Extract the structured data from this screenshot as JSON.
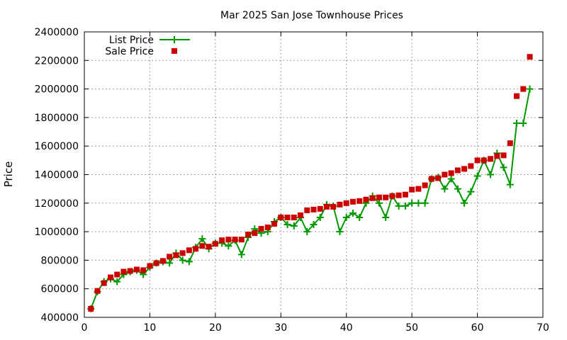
{
  "chart_data": {
    "type": "line",
    "title": "Mar 2025 San Jose Townhouse Prices",
    "xlabel": "",
    "ylabel": "Price",
    "xlim": [
      0,
      70
    ],
    "ylim": [
      400000,
      2400000
    ],
    "xticks": [
      0,
      10,
      20,
      30,
      40,
      50,
      60,
      70
    ],
    "yticks": [
      400000,
      600000,
      800000,
      1000000,
      1200000,
      1400000,
      1600000,
      1800000,
      2000000,
      2200000,
      2400000
    ],
    "grid": true,
    "legend_position": "top-left",
    "series": [
      {
        "name": "List Price",
        "kind": "line-points",
        "color": "#009900",
        "x": [
          1,
          2,
          3,
          4,
          5,
          6,
          7,
          8,
          9,
          10,
          11,
          12,
          13,
          14,
          15,
          16,
          17,
          18,
          19,
          20,
          21,
          22,
          23,
          24,
          25,
          26,
          27,
          28,
          29,
          30,
          31,
          32,
          33,
          34,
          35,
          36,
          37,
          38,
          39,
          40,
          41,
          42,
          43,
          44,
          45,
          46,
          47,
          48,
          49,
          50,
          51,
          52,
          53,
          54,
          55,
          56,
          57,
          58,
          59,
          60,
          61,
          62,
          63,
          64,
          65,
          66,
          67,
          68
        ],
        "values": [
          460000,
          580000,
          650000,
          670000,
          650000,
          700000,
          720000,
          730000,
          700000,
          750000,
          780000,
          790000,
          780000,
          850000,
          800000,
          790000,
          890000,
          950000,
          880000,
          920000,
          920000,
          900000,
          940000,
          840000,
          960000,
          1020000,
          990000,
          1000000,
          1070000,
          1100000,
          1050000,
          1040000,
          1100000,
          1000000,
          1050000,
          1100000,
          1190000,
          1180000,
          1000000,
          1100000,
          1130000,
          1100000,
          1200000,
          1250000,
          1200000,
          1100000,
          1250000,
          1180000,
          1180000,
          1200000,
          1200000,
          1200000,
          1370000,
          1380000,
          1300000,
          1370000,
          1300000,
          1200000,
          1280000,
          1390000,
          1500000,
          1400000,
          1550000,
          1450000,
          1330000,
          1760000,
          1760000,
          2000000
        ]
      },
      {
        "name": "Sale Price",
        "kind": "points",
        "color": "#cc0000",
        "x": [
          1,
          2,
          3,
          4,
          5,
          6,
          7,
          8,
          9,
          10,
          11,
          12,
          13,
          14,
          15,
          16,
          17,
          18,
          19,
          20,
          21,
          22,
          23,
          24,
          25,
          26,
          27,
          28,
          29,
          30,
          31,
          32,
          33,
          34,
          35,
          36,
          37,
          38,
          39,
          40,
          41,
          42,
          43,
          44,
          45,
          46,
          47,
          48,
          49,
          50,
          51,
          52,
          53,
          54,
          55,
          56,
          57,
          58,
          59,
          60,
          61,
          62,
          63,
          64,
          65,
          66,
          67,
          68
        ],
        "values": [
          460000,
          585000,
          640000,
          680000,
          700000,
          720000,
          725000,
          735000,
          730000,
          760000,
          780000,
          795000,
          825000,
          835000,
          850000,
          870000,
          880000,
          900000,
          895000,
          915000,
          940000,
          945000,
          945000,
          945000,
          980000,
          990000,
          1020000,
          1030000,
          1055000,
          1100000,
          1100000,
          1100000,
          1115000,
          1150000,
          1155000,
          1160000,
          1175000,
          1175000,
          1190000,
          1200000,
          1210000,
          1215000,
          1225000,
          1235000,
          1240000,
          1240000,
          1250000,
          1255000,
          1260000,
          1295000,
          1300000,
          1325000,
          1370000,
          1375000,
          1400000,
          1410000,
          1430000,
          1440000,
          1460000,
          1500000,
          1500000,
          1510000,
          1530000,
          1535000,
          1620000,
          1950000,
          2000000,
          2225000
        ]
      }
    ]
  }
}
